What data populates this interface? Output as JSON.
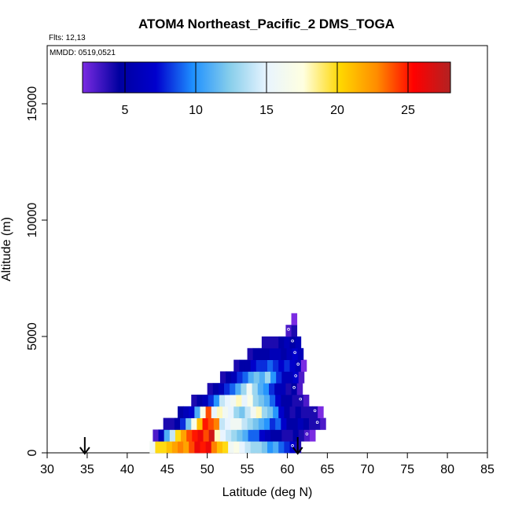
{
  "chart_data": {
    "type": "heatmap",
    "title": "ATOM4 Northeast_Pacific_2 DMS_TOGA",
    "flights_note": "Flts: 12,13",
    "dates_note": "MMDD: 0519,0521",
    "xlabel": "Latitude (deg N)",
    "ylabel": "Altitude (m)",
    "xlim": [
      30,
      85
    ],
    "ylim": [
      0,
      17500
    ],
    "x_ticks": [
      30,
      35,
      40,
      45,
      50,
      55,
      60,
      65,
      70,
      75,
      80,
      85
    ],
    "y_ticks": [
      0,
      5000,
      10000,
      15000
    ],
    "grid": false,
    "colorbar": {
      "placement": "top",
      "range": [
        2,
        28
      ],
      "ticks": [
        5,
        10,
        15,
        20,
        25
      ],
      "colors": [
        "#7b2be2",
        "#0000a0",
        "#0000cd",
        "#1e90ff",
        "#87ceeb",
        "#e8f4ff",
        "#ffffe0",
        "#ffd700",
        "#ff8c00",
        "#ff0000",
        "#b22222"
      ]
    },
    "flight_arrows_lat": [
      34.7,
      61.3
    ],
    "cell_width_deg": 0.7,
    "cell_height_m": 500,
    "rows": [
      {
        "alt": 250,
        "lat_start": 42.8,
        "values": [
          16,
          20,
          20,
          21,
          22,
          23,
          22,
          24,
          26,
          25,
          26,
          23,
          21,
          20,
          16,
          17,
          15,
          14,
          13,
          13,
          12,
          10,
          11,
          9,
          8,
          7,
          4
        ]
      },
      {
        "alt": 750,
        "lat_start": 43.2,
        "values": [
          3,
          6,
          11,
          14,
          20,
          22,
          24,
          25,
          26,
          24,
          27,
          18,
          15,
          14,
          13,
          12,
          11,
          9,
          9,
          7,
          6,
          5,
          5,
          4,
          4,
          5,
          4,
          3,
          2
        ]
      },
      {
        "alt": 1250,
        "lat_start": 44.5,
        "values": [
          4,
          4,
          5,
          8,
          12,
          17,
          21,
          25,
          24,
          23,
          14,
          15,
          16,
          16,
          14,
          13,
          12,
          11,
          10,
          8,
          9,
          7,
          5,
          5,
          6,
          5,
          4,
          4,
          3
        ]
      },
      {
        "alt": 1750,
        "lat_start": 46.3,
        "values": [
          5,
          6,
          7,
          11,
          17,
          24,
          15,
          18,
          16,
          15,
          13,
          12,
          14,
          16,
          18,
          13,
          12,
          10,
          7,
          5,
          4,
          5,
          4,
          4,
          4,
          2
        ]
      },
      {
        "alt": 2250,
        "lat_start": 48.0,
        "values": [
          4,
          5,
          6,
          8,
          10,
          14,
          15,
          16,
          18,
          15,
          17,
          13,
          12,
          11,
          9,
          7,
          5,
          5,
          4,
          4,
          3
        ]
      },
      {
        "alt": 2750,
        "lat_start": 50.0,
        "values": [
          4,
          5,
          6,
          8,
          9,
          11,
          13,
          16,
          13,
          11,
          10,
          8,
          6,
          6,
          4,
          5,
          3
        ]
      },
      {
        "alt": 3250,
        "lat_start": 51.6,
        "values": [
          4,
          5,
          6,
          8,
          9,
          11,
          12,
          11,
          13,
          10,
          8,
          6,
          6,
          7,
          3
        ]
      },
      {
        "alt": 3750,
        "lat_start": 53.3,
        "values": [
          4,
          5,
          5,
          7,
          8,
          8,
          9,
          8,
          7,
          8,
          7,
          6,
          2
        ]
      },
      {
        "alt": 4250,
        "lat_start": 55.0,
        "values": [
          4,
          5,
          5,
          5,
          6,
          6,
          5,
          6,
          7,
          6
        ]
      },
      {
        "alt": 4750,
        "lat_start": 56.8,
        "values": [
          4,
          4,
          4,
          5,
          6,
          5,
          6
        ]
      },
      {
        "alt": 5250,
        "lat_start": 59.8,
        "values": [
          3,
          4
        ]
      },
      {
        "alt": 5750,
        "lat_start": 60.5,
        "values": [
          2
        ]
      }
    ]
  }
}
